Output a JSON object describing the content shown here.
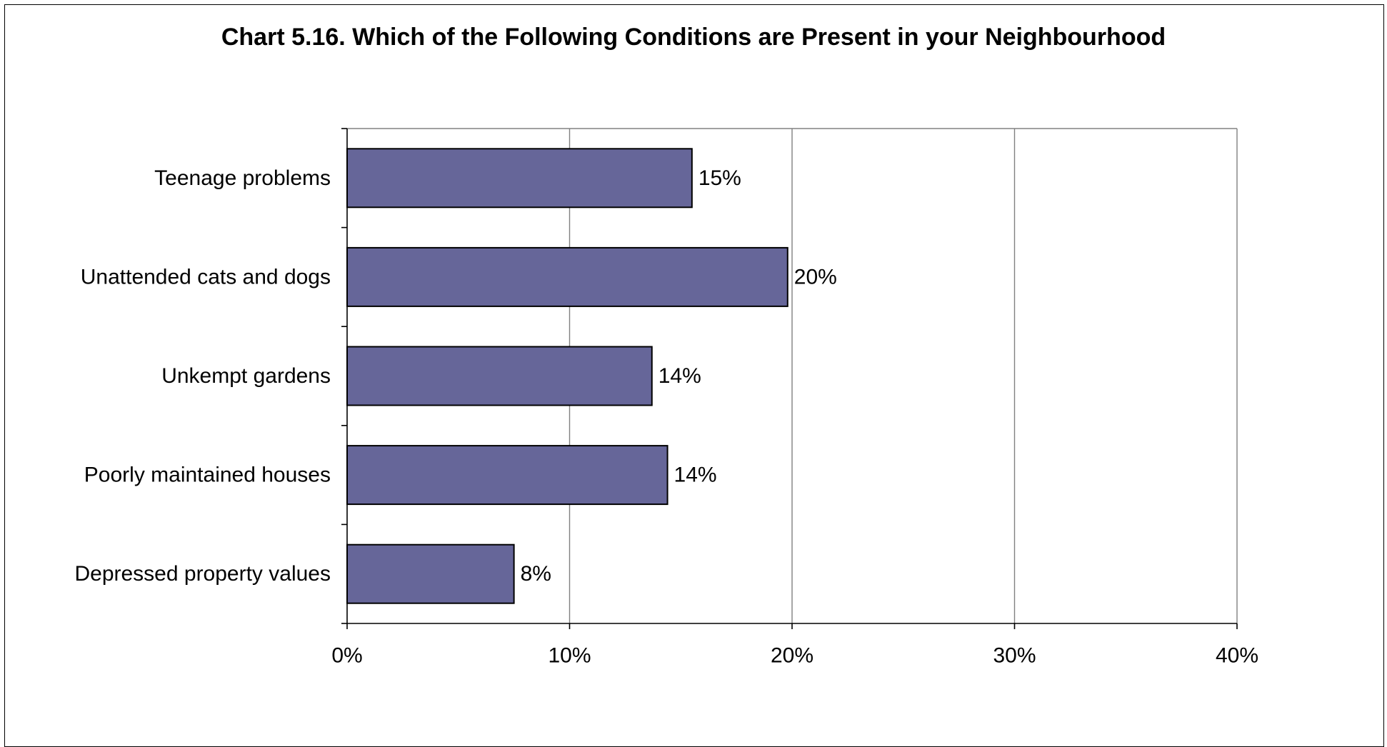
{
  "chart_data": {
    "type": "bar",
    "orientation": "horizontal",
    "title": "Chart 5.16. Which of the Following Conditions are Present in your Neighbourhood",
    "categories": [
      "Teenage problems",
      "Unattended cats and dogs",
      "Unkempt gardens",
      "Poorly maintained houses",
      "Depressed property values"
    ],
    "values": [
      15.5,
      19.8,
      13.7,
      14.4,
      7.5
    ],
    "data_labels": [
      "15%",
      "20%",
      "14%",
      "14%",
      "8%"
    ],
    "x_ticks": [
      0,
      10,
      20,
      30,
      40
    ],
    "x_tick_labels": [
      "0%",
      "10%",
      "20%",
      "30%",
      "40%"
    ],
    "xlim": [
      0,
      40
    ],
    "xlabel": "",
    "ylabel": "",
    "grid": true,
    "legend": "none",
    "bar_color": "#666699",
    "bar_edge_color": "#000000"
  }
}
